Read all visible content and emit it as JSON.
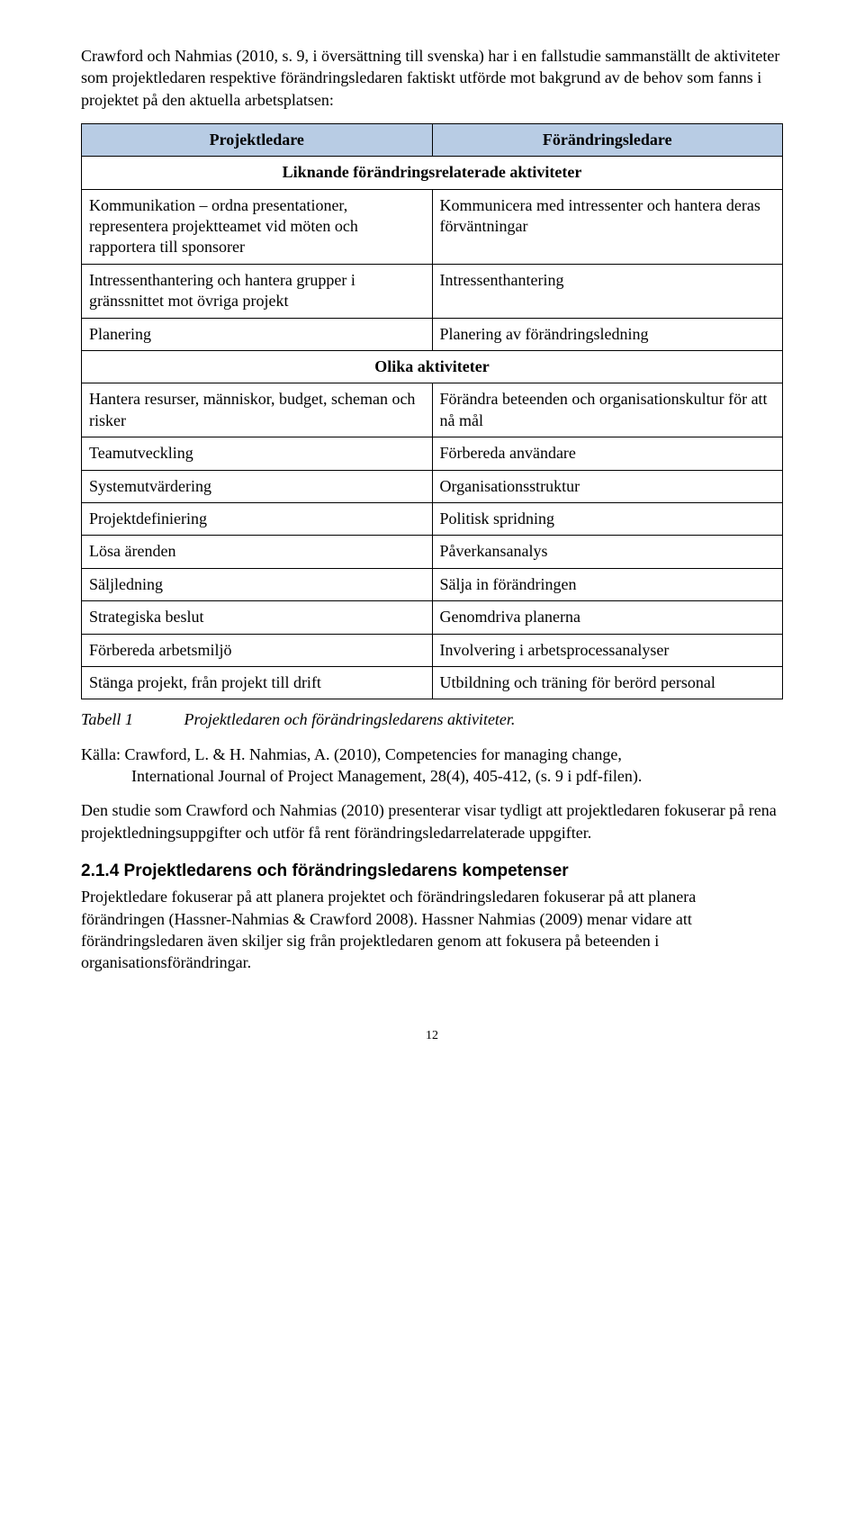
{
  "intro_paragraph": "Crawford och Nahmias (2010, s. 9, i översättning till svenska) har i en fallstudie sammanställt de aktiviteter som projektledaren respektive förändringsledaren faktiskt utförde mot bakgrund av de behov som fanns i projektet på den aktuella arbetsplatsen:",
  "table": {
    "header_left": "Projektledare",
    "header_right": "Förändringsledare",
    "section_similar": "Liknande förändringsrelaterade aktiviteter",
    "similar_rows": [
      {
        "left": "Kommunikation – ordna presentationer, representera projektteamet vid möten och rapportera till sponsorer",
        "right": "Kommunicera med intressenter och hantera deras förväntningar"
      },
      {
        "left": "Intressenthantering och hantera grupper i gränssnittet mot övriga projekt",
        "right": "Intressenthantering"
      },
      {
        "left": "Planering",
        "right": "Planering av förändringsledning"
      }
    ],
    "section_different": "Olika aktiviteter",
    "different_rows": [
      {
        "left": "Hantera resurser, människor, budget, scheman och risker",
        "right": "Förändra beteenden och organisationskultur för att nå mål"
      },
      {
        "left": "Teamutveckling",
        "right": "Förbereda användare"
      },
      {
        "left": "Systemutvärdering",
        "right": "Organisationsstruktur"
      },
      {
        "left": "Projektdefiniering",
        "right": "Politisk spridning"
      },
      {
        "left": "Lösa ärenden",
        "right": "Påverkansanalys"
      },
      {
        "left": "Säljledning",
        "right": "Sälja in förändringen"
      },
      {
        "left": "Strategiska beslut",
        "right": "Genomdriva planerna"
      },
      {
        "left": "Förbereda arbetsmiljö",
        "right": "Involvering i arbetsprocessanalyser"
      },
      {
        "left": "Stänga projekt, från projekt till drift",
        "right": "Utbildning och träning för berörd personal"
      }
    ]
  },
  "caption": {
    "label": "Tabell 1",
    "text": "Projektledaren och förändringsledarens aktiviteter."
  },
  "source": {
    "line1": "Källa: Crawford, L. & H. Nahmias, A. (2010), Competencies for managing change,",
    "line2": "International Journal of Project Management, 28(4), 405-412, (s. 9 i pdf-filen)."
  },
  "paragraph_after_source": "Den studie som Crawford och Nahmias (2010) presenterar visar tydligt att projektledaren fokuserar på rena projektledningsuppgifter och utför få rent förändringsledarrelaterade uppgifter.",
  "subheading": "2.1.4 Projektledarens och förändringsledarens kompetenser",
  "paragraph_heading_body": "Projektledare fokuserar på att planera projektet och förändringsledaren fokuserar på att planera förändringen (Hassner-Nahmias & Crawford 2008). Hassner Nahmias (2009) menar vidare att förändringsledaren även skiljer sig från projektledaren genom att fokusera på beteenden i organisationsförändringar.",
  "page_number": "12",
  "colors": {
    "header_bg": "#b8cce4",
    "border": "#000000",
    "text": "#000000",
    "background": "#ffffff"
  }
}
